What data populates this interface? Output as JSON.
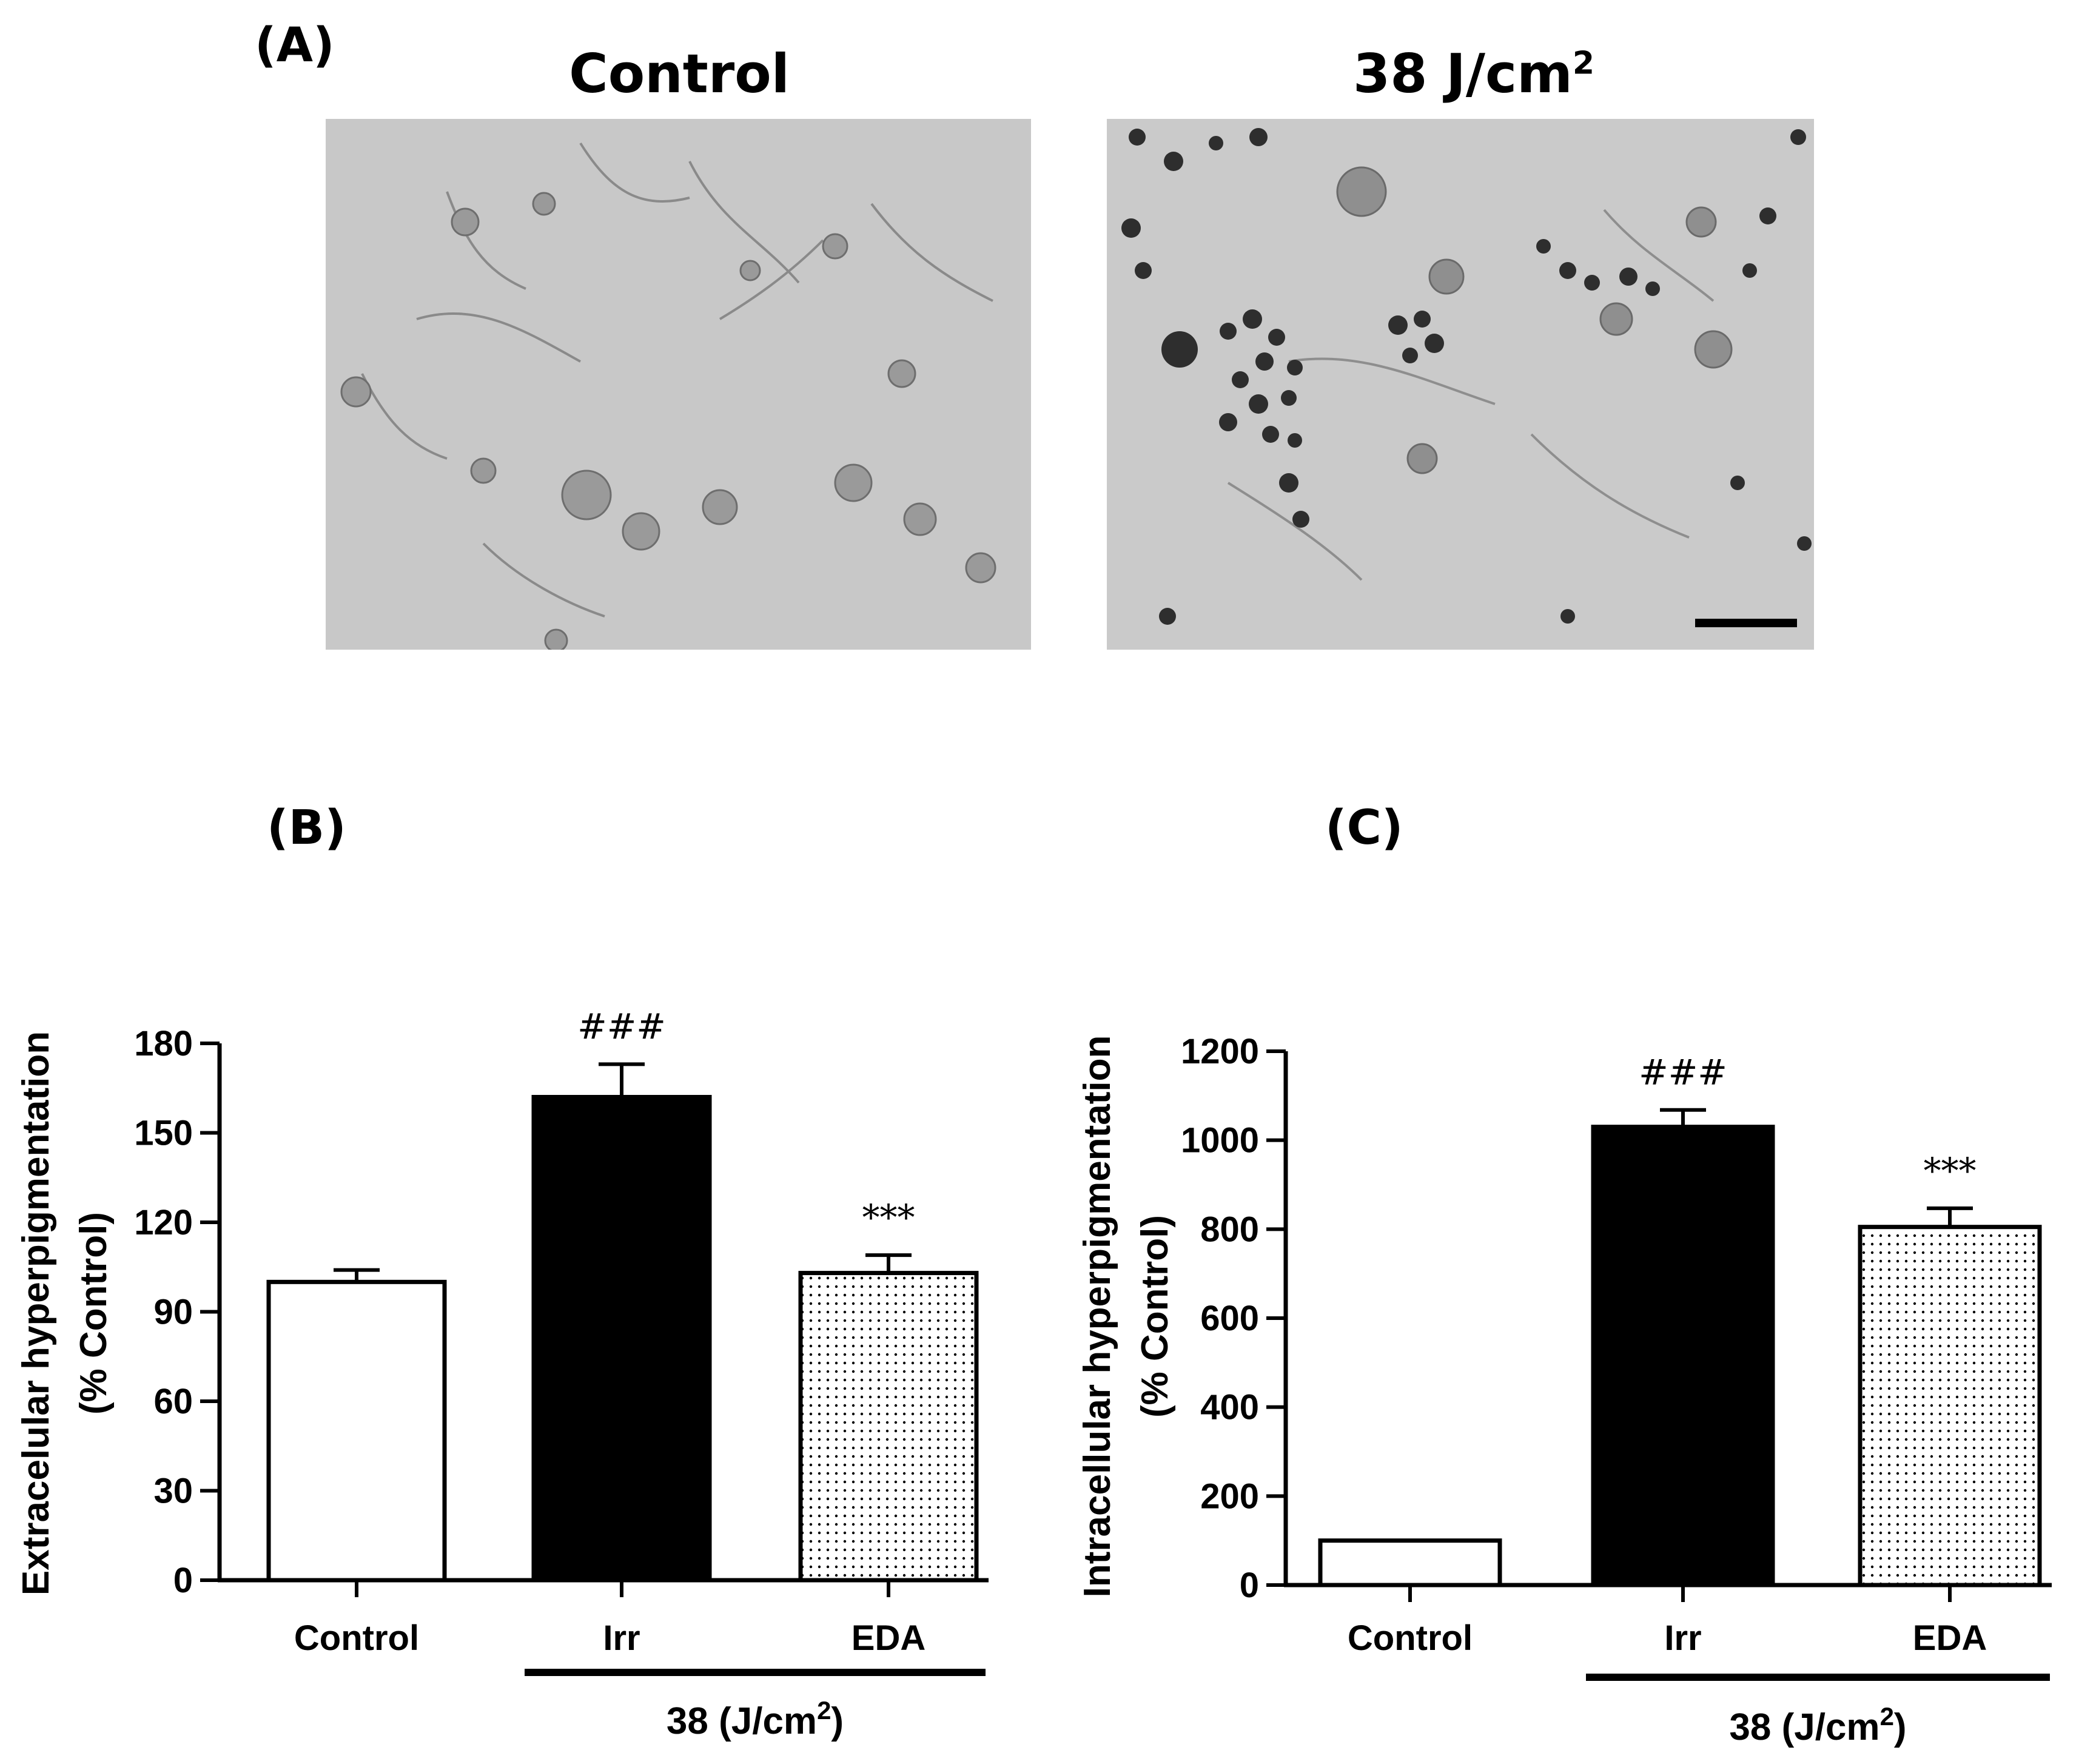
{
  "panel_a": {
    "label": "(A)",
    "left_title": "Control",
    "right_title_main": "38 J/cm",
    "right_title_sup": "2"
  },
  "panel_b": {
    "label": "(B)"
  },
  "panel_c": {
    "label": "(C)"
  },
  "chart_data": [
    {
      "type": "bar",
      "categories": [
        "Control",
        "Irr",
        "EDA"
      ],
      "values": [
        100,
        162,
        103
      ],
      "errors": [
        4,
        11,
        6
      ],
      "fills": [
        "white",
        "black",
        "dotted"
      ],
      "annotations": [
        "",
        "###",
        "***"
      ],
      "ylabel": [
        "Extracelular hyperpigmentation",
        "(% Control)"
      ],
      "ylim": [
        0,
        180
      ],
      "yticks": [
        0,
        30,
        60,
        90,
        120,
        150,
        180
      ],
      "group_label_main": "38 (J/cm",
      "group_label_sup": "2",
      "group_label_end": ")",
      "group_span": [
        "Irr",
        "EDA"
      ]
    },
    {
      "type": "bar",
      "categories": [
        "Control",
        "Irr",
        "EDA"
      ],
      "values": [
        100,
        1030,
        805
      ],
      "errors": [
        0,
        38,
        42
      ],
      "fills": [
        "white",
        "black",
        "dotted"
      ],
      "annotations": [
        "",
        "###",
        "***"
      ],
      "ylabel": [
        "Intracellular hyperpigmentation",
        "(% Control)"
      ],
      "ylim": [
        0,
        1200
      ],
      "yticks": [
        0,
        200,
        400,
        600,
        800,
        1000,
        1200
      ],
      "group_label_main": "38 (J/cm",
      "group_label_sup": "2",
      "group_label_end": ")",
      "group_span": [
        "Irr",
        "EDA"
      ]
    }
  ]
}
